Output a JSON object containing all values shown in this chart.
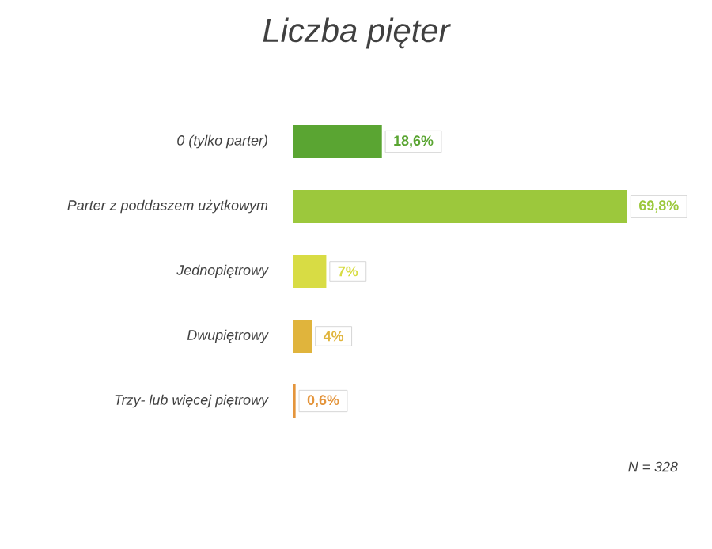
{
  "chart_data": {
    "type": "bar",
    "orientation": "horizontal",
    "title": "Liczba pięter",
    "categories": [
      "0 (tylko parter)",
      "Parter z poddaszem użytkowym",
      "Jednopiętrowy",
      "Dwupiętrowy",
      "Trzy- lub więcej piętrowy"
    ],
    "values": [
      18.6,
      69.8,
      7,
      4,
      0.6
    ],
    "colors": [
      "#5aa532",
      "#9cc83c",
      "#d8dc44",
      "#e0b43c",
      "#e4953c"
    ],
    "data_labels": true,
    "value_labels": [
      "18,6%",
      "69,8%",
      "7%",
      "4%",
      "0,6%"
    ],
    "annotations": [
      "N = 328"
    ]
  }
}
